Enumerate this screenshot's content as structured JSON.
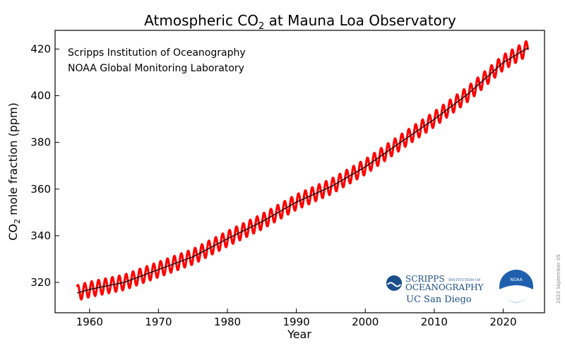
{
  "chart_data": {
    "type": "line",
    "title_prefix": "Atmospheric CO",
    "title_sub": "2",
    "title_suffix": " at Mauna Loa Observatory",
    "xlabel": "Year",
    "ylabel_prefix": "CO",
    "ylabel_sub": "2",
    "ylabel_suffix": " mole fraction (ppm)",
    "xlim": [
      1955,
      2026
    ],
    "ylim": [
      307,
      428
    ],
    "xticks": [
      1960,
      1970,
      1980,
      1990,
      2000,
      2010,
      2020
    ],
    "yticks": [
      320,
      340,
      360,
      380,
      400,
      420
    ],
    "grid": false,
    "annotations": [
      "Scripps Institution of Oceanography",
      "NOAA Global Monitoring Laboratory"
    ],
    "date_stamp": "2023 September 05",
    "series": [
      {
        "color": "#ff0000",
        "seasonal_amplitude_ppm": 3.3,
        "x": [
          1958.2,
          1960,
          1965,
          1970,
          1975,
          1980,
          1985,
          1990,
          1995,
          2000,
          2005,
          2010,
          2015,
          2020,
          2023.6
        ],
        "values": [
          315.5,
          317,
          320,
          325.5,
          331,
          338.7,
          346,
          354.4,
          361,
          369.5,
          379.8,
          389.9,
          401,
          414.2,
          420.5
        ]
      },
      {
        "color": "#000000",
        "x": [
          1958.2,
          1960,
          1965,
          1970,
          1975,
          1980,
          1985,
          1990,
          1995,
          2000,
          2005,
          2010,
          2015,
          2020,
          2023.6
        ],
        "values": [
          315.5,
          317,
          320,
          325.5,
          331,
          338.7,
          346,
          354.4,
          361,
          369.5,
          379.8,
          389.9,
          401,
          414.2,
          420.5
        ]
      }
    ]
  },
  "logos": {
    "scripps_top": "SCRIPPS",
    "scripps_small": "INSTITUTION OF",
    "scripps_bottom": "OCEANOGRAPHY",
    "ucsd": "UC San Diego",
    "noaa": "NOAA"
  }
}
